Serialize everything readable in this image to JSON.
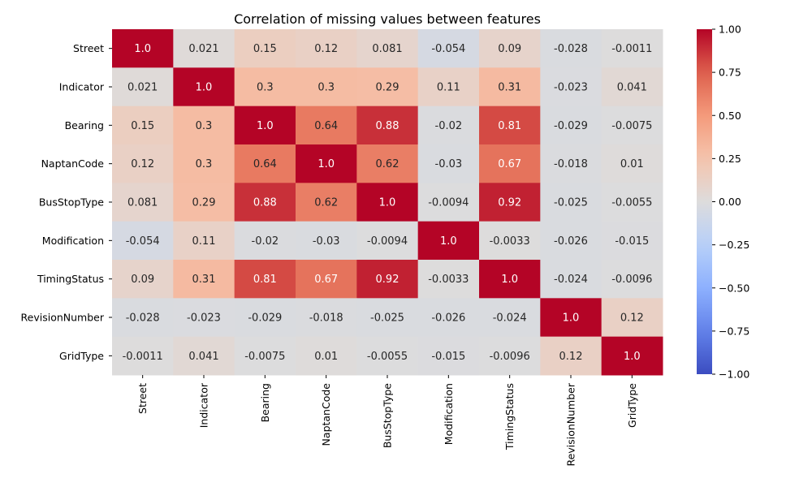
{
  "chart_data": {
    "type": "heatmap",
    "title": "Correlation of missing values between features",
    "row_labels": [
      "Street",
      "Indicator",
      "Bearing",
      "NaptanCode",
      "BusStopType",
      "Modification",
      "TimingStatus",
      "RevisionNumber",
      "GridType"
    ],
    "col_labels": [
      "Street",
      "Indicator",
      "Bearing",
      "NaptanCode",
      "BusStopType",
      "Modification",
      "TimingStatus",
      "RevisionNumber",
      "GridType"
    ],
    "values": [
      [
        1.0,
        0.021,
        0.15,
        0.12,
        0.081,
        -0.054,
        0.09,
        -0.028,
        -0.0011
      ],
      [
        0.021,
        1.0,
        0.3,
        0.3,
        0.29,
        0.11,
        0.31,
        -0.023,
        0.041
      ],
      [
        0.15,
        0.3,
        1.0,
        0.64,
        0.88,
        -0.02,
        0.81,
        -0.029,
        -0.0075
      ],
      [
        0.12,
        0.3,
        0.64,
        1.0,
        0.62,
        -0.03,
        0.67,
        -0.018,
        0.01
      ],
      [
        0.081,
        0.29,
        0.88,
        0.62,
        1.0,
        -0.0094,
        0.92,
        -0.025,
        -0.0055
      ],
      [
        -0.054,
        0.11,
        -0.02,
        -0.03,
        -0.0094,
        1.0,
        -0.0033,
        -0.026,
        -0.015
      ],
      [
        0.09,
        0.31,
        0.81,
        0.67,
        0.92,
        -0.0033,
        1.0,
        -0.024,
        -0.0096
      ],
      [
        -0.028,
        -0.023,
        -0.029,
        -0.018,
        -0.025,
        -0.026,
        -0.024,
        1.0,
        0.12
      ],
      [
        -0.0011,
        0.041,
        -0.0075,
        0.01,
        -0.0055,
        -0.015,
        -0.0096,
        0.12,
        1.0
      ]
    ],
    "annotations": [
      [
        "1.0",
        "0.021",
        "0.15",
        "0.12",
        "0.081",
        "-0.054",
        "0.09",
        "-0.028",
        "-0.0011"
      ],
      [
        "0.021",
        "1.0",
        "0.3",
        "0.3",
        "0.29",
        "0.11",
        "0.31",
        "-0.023",
        "0.041"
      ],
      [
        "0.15",
        "0.3",
        "1.0",
        "0.64",
        "0.88",
        "-0.02",
        "0.81",
        "-0.029",
        "-0.0075"
      ],
      [
        "0.12",
        "0.3",
        "0.64",
        "1.0",
        "0.62",
        "-0.03",
        "0.67",
        "-0.018",
        "0.01"
      ],
      [
        "0.081",
        "0.29",
        "0.88",
        "0.62",
        "1.0",
        "-0.0094",
        "0.92",
        "-0.025",
        "-0.0055"
      ],
      [
        "-0.054",
        "0.11",
        "-0.02",
        "-0.03",
        "-0.0094",
        "1.0",
        "-0.0033",
        "-0.026",
        "-0.015"
      ],
      [
        "0.09",
        "0.31",
        "0.81",
        "0.67",
        "0.92",
        "-0.0033",
        "1.0",
        "-0.024",
        "-0.0096"
      ],
      [
        "-0.028",
        "-0.023",
        "-0.029",
        "-0.018",
        "-0.025",
        "-0.026",
        "-0.024",
        "1.0",
        "0.12"
      ],
      [
        "-0.0011",
        "0.041",
        "-0.0075",
        "0.01",
        "-0.0055",
        "-0.015",
        "-0.0096",
        "0.12",
        "1.0"
      ]
    ],
    "colormap": "coolwarm",
    "vmin": -1.0,
    "vmax": 1.0,
    "colorbar_ticks": [
      1.0,
      0.75,
      0.5,
      0.25,
      0.0,
      -0.25,
      -0.5,
      -0.75,
      -1.0
    ],
    "colorbar_tick_labels": [
      "1.00",
      "0.75",
      "0.50",
      "0.25",
      "0.00",
      "−0.25",
      "−0.50",
      "−0.75",
      "−1.00"
    ],
    "colorbar_placement": "right"
  }
}
